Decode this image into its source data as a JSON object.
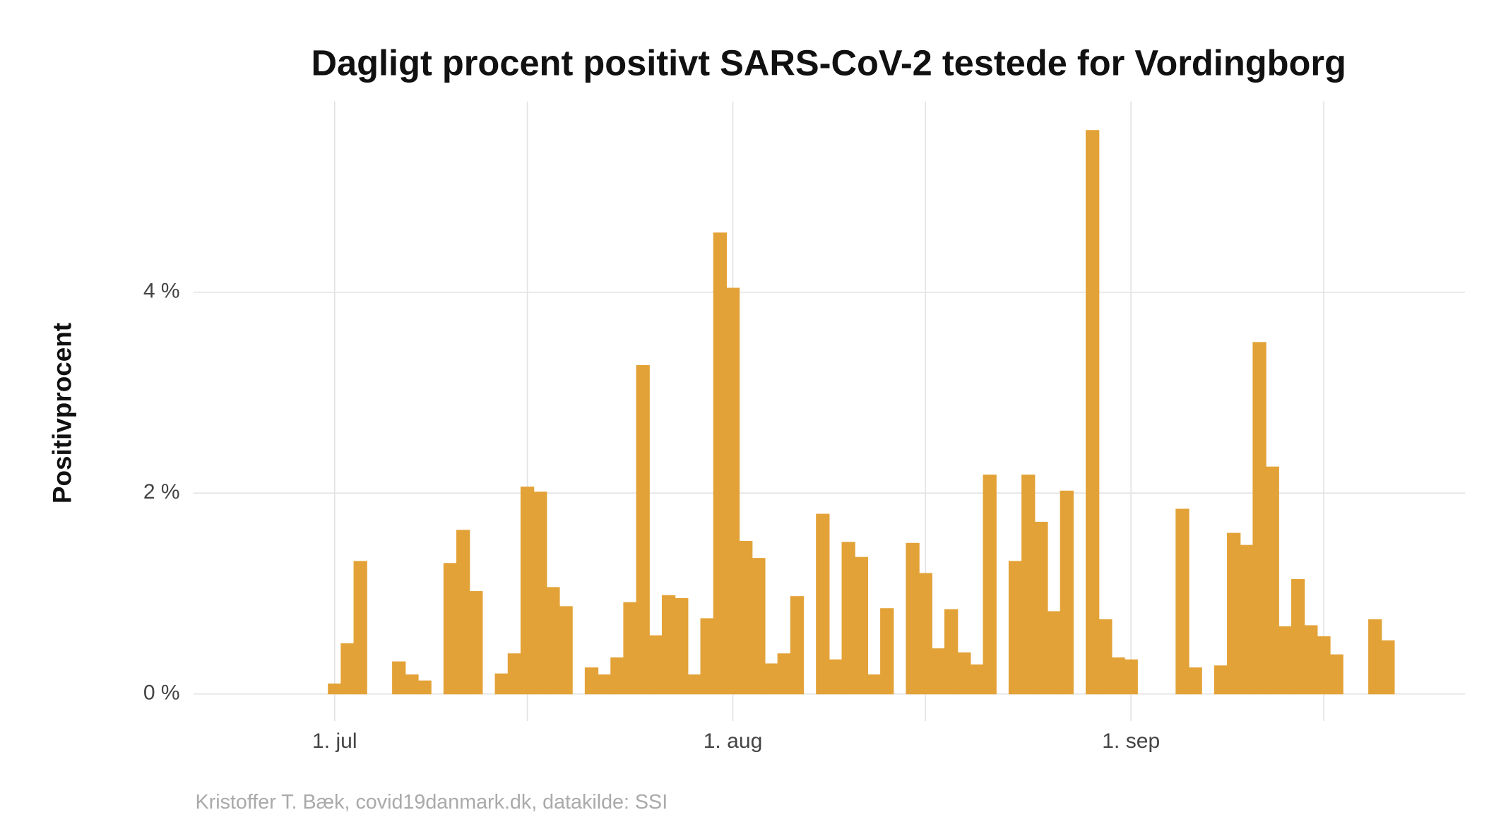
{
  "chart_data": {
    "type": "bar",
    "title": "Dagligt procent positivt SARS-CoV-2 testede for Vordingborg",
    "ylabel": "Positivprocent",
    "caption": "Kristoffer T. Bæk, covid19danmark.dk, datakilde: SSI",
    "color": "#e3a237",
    "grid": true,
    "x": [
      "06-25",
      "06-26",
      "06-27",
      "06-28",
      "06-29",
      "06-30",
      "07-01",
      "07-02",
      "07-03",
      "07-04",
      "07-05",
      "07-06",
      "07-07",
      "07-08",
      "07-09",
      "07-10",
      "07-11",
      "07-12",
      "07-13",
      "07-14",
      "07-15",
      "07-16",
      "07-17",
      "07-18",
      "07-19",
      "07-20",
      "07-21",
      "07-22",
      "07-23",
      "07-24",
      "07-25",
      "07-26",
      "07-27",
      "07-28",
      "07-29",
      "07-30",
      "07-31",
      "08-01",
      "08-02",
      "08-03",
      "08-04",
      "08-05",
      "08-06",
      "08-07",
      "08-08",
      "08-09",
      "08-10",
      "08-11",
      "08-12",
      "08-13",
      "08-14",
      "08-15",
      "08-16",
      "08-17",
      "08-18",
      "08-19",
      "08-20",
      "08-21",
      "08-22",
      "08-23",
      "08-24",
      "08-25",
      "08-26",
      "08-27",
      "08-28",
      "08-29",
      "08-30",
      "08-31",
      "09-01",
      "09-02",
      "09-03",
      "09-04",
      "09-05",
      "09-06",
      "09-07",
      "09-08",
      "09-09",
      "09-10",
      "09-11",
      "09-12",
      "09-13",
      "09-14",
      "09-15",
      "09-16",
      "09-17",
      "09-18",
      "09-19",
      "09-20",
      "09-21",
      "09-22"
    ],
    "values": [
      0,
      0,
      0,
      0,
      0,
      0,
      0.1,
      0.5,
      1.32,
      0,
      0,
      0.32,
      0.19,
      0.13,
      0,
      1.3,
      1.63,
      1.02,
      0,
      0.2,
      0.4,
      2.06,
      2.01,
      1.06,
      0.87,
      0,
      0.26,
      0.19,
      0.36,
      0.91,
      3.27,
      0.58,
      0.98,
      0.95,
      0.19,
      0.75,
      4.59,
      4.04,
      1.52,
      1.35,
      0.3,
      0.4,
      0.97,
      0,
      1.79,
      0.34,
      1.51,
      1.36,
      0.19,
      0.85,
      0,
      1.5,
      1.2,
      0.45,
      0.84,
      0.41,
      0.29,
      2.18,
      0,
      1.32,
      2.18,
      1.71,
      0.82,
      2.02,
      0,
      5.61,
      0.74,
      0.36,
      0.34,
      0,
      0,
      0,
      1.84,
      0.26,
      0,
      0.28,
      1.6,
      1.48,
      3.5,
      2.26,
      0.67,
      1.14,
      0.68,
      0.57,
      0.39,
      0,
      0,
      0.74,
      0.53,
      0
    ],
    "xlim": [
      "06-20",
      "09-27"
    ],
    "xticks": [
      {
        "value": "07-01",
        "label": "1. jul"
      },
      {
        "value": "08-01",
        "label": "1. aug"
      },
      {
        "value": "09-01",
        "label": "1. sep"
      }
    ],
    "xminor": [
      "07-16",
      "08-16",
      "09-16"
    ],
    "ylim": [
      -0.27,
      5.9
    ],
    "yticks": [
      {
        "value": 0,
        "label": "0 %"
      },
      {
        "value": 2,
        "label": "2 %"
      },
      {
        "value": 4,
        "label": "4 %"
      }
    ]
  }
}
